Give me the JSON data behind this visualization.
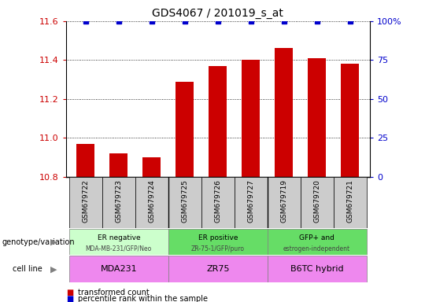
{
  "title": "GDS4067 / 201019_s_at",
  "samples": [
    "GSM679722",
    "GSM679723",
    "GSM679724",
    "GSM679725",
    "GSM679726",
    "GSM679727",
    "GSM679719",
    "GSM679720",
    "GSM679721"
  ],
  "transformed_counts": [
    10.97,
    10.92,
    10.9,
    11.29,
    11.37,
    11.4,
    11.46,
    11.41,
    11.38
  ],
  "percentile_ranks": [
    100,
    100,
    100,
    100,
    100,
    100,
    100,
    100,
    100
  ],
  "ylim_left": [
    10.8,
    11.6
  ],
  "ylim_right": [
    0,
    100
  ],
  "yticks_left": [
    10.8,
    11.0,
    11.2,
    11.4,
    11.6
  ],
  "yticks_right": [
    0,
    25,
    50,
    75,
    100
  ],
  "bar_color": "#cc0000",
  "dot_color": "#0000cc",
  "sample_bg_color": "#cccccc",
  "geno_color_light": "#ccffcc",
  "geno_color_dark": "#66dd66",
  "cell_color": "#ee88ee",
  "group_texts": [
    "ER negative\nMDA-MB-231/GFP/Neo",
    "ER positive\nZR-75-1/GFP/puro",
    "GFP+ and\nestrogen-independent"
  ],
  "cell_lines": [
    "MDA231",
    "ZR75",
    "B6TC hybrid"
  ],
  "group_starts": [
    0,
    3,
    6
  ],
  "group_ends": [
    3,
    6,
    9
  ],
  "group_geno_colors": [
    "#ccffcc",
    "#66dd66",
    "#66dd66"
  ],
  "legend_bar_label": "transformed count",
  "legend_dot_label": "percentile rank within the sample",
  "xlabel_geno": "genotype/variation",
  "xlabel_cell": "cell line"
}
